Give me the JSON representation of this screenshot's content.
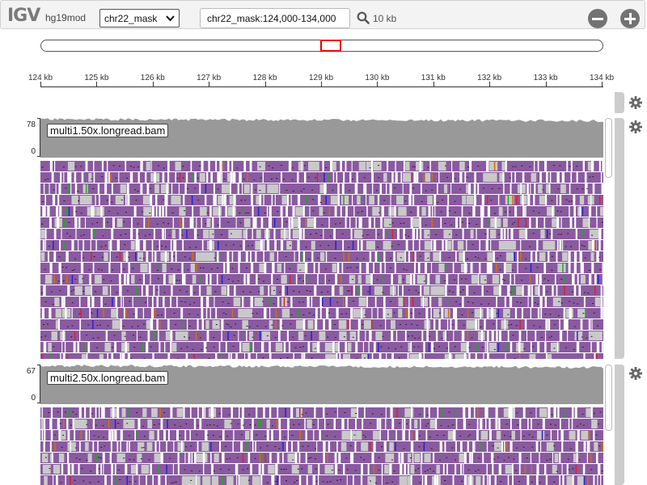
{
  "navbar": {
    "logo": "IGV",
    "genome": "hg19mod",
    "chromosome": "chr22_mask",
    "locus": "chr22_mask:124,000-134,000",
    "window_size": "10 kb"
  },
  "icons": {
    "search": "search-icon",
    "zoom_out": "zoom-out-icon",
    "zoom_in": "zoom-in-icon",
    "settings": "gear-icon",
    "dropdown": "chevron-down-icon"
  },
  "ruler": {
    "ticks": [
      "124 kb",
      "125 kb",
      "126 kb",
      "127 kb",
      "128 kb",
      "129 kb",
      "130 kb",
      "131 kb",
      "132 kb",
      "133 kb",
      "134 kb"
    ]
  },
  "tracks": [
    {
      "name": "multi1.50x.longread.bam",
      "coverage_max": "78",
      "coverage_min": "0"
    },
    {
      "name": "multi2.50x.longread.bam",
      "coverage_max": "67",
      "coverage_min": "0"
    }
  ],
  "colors": {
    "coverage": "#999999",
    "read": "#8a5aa0",
    "deletion": "#ffffff",
    "insertion_gap": "#c9c9c9",
    "mismatch_A": "#22a822",
    "mismatch_C": "#2222dd",
    "mismatch_G": "#d17105",
    "mismatch_T": "#dd2222",
    "region_box": "#e00000"
  }
}
